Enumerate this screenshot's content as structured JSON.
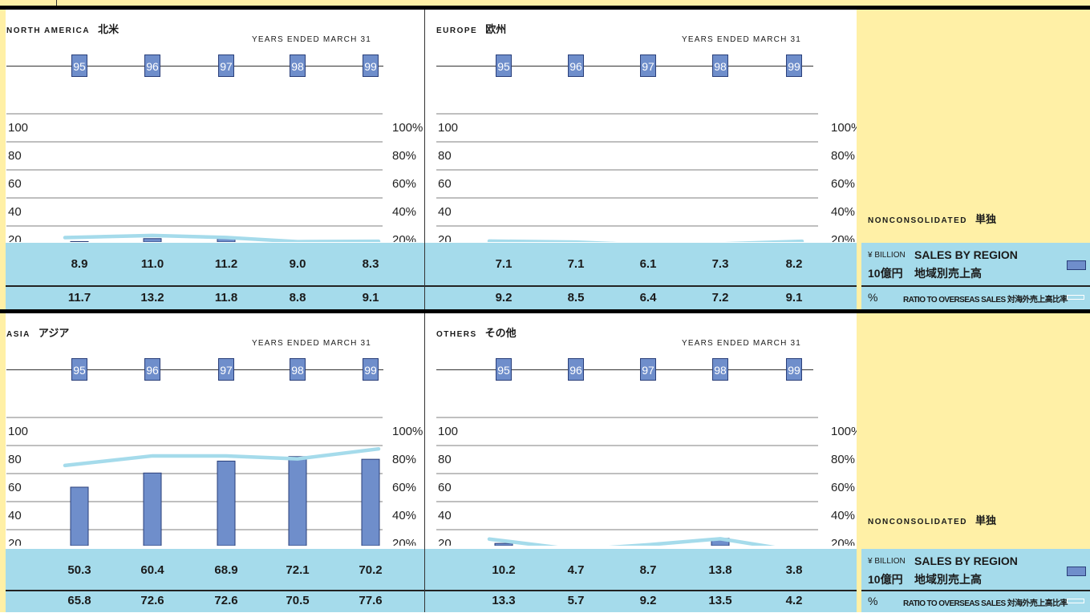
{
  "years_note": "YEARS ENDED MARCH 31",
  "years": [
    "95",
    "96",
    "97",
    "98",
    "99"
  ],
  "left_ticks": [
    "100",
    "80",
    "60",
    "40",
    "20"
  ],
  "right_ticks": [
    "100%",
    "80%",
    "60%",
    "40%",
    "20%"
  ],
  "legend": {
    "nonconsolidated": "NONCONSOLIDATED",
    "nonconsolidated_jp": "単独",
    "unit_en": "¥ BILLION",
    "sales_en": "SALES BY REGION",
    "unit_jp": "10億円",
    "sales_jp": "地域別売上高",
    "pct": "%",
    "ratio": "RATIO TO OVERSEAS SALES 対海外売上高比率"
  },
  "colors": {
    "bar": "#6f8ecb",
    "line": "#a5dbeb",
    "band": "#a5dbeb",
    "yellow": "#fff0a6"
  },
  "chart_data": [
    {
      "id": "na",
      "type": "bar",
      "region_en": "NORTH AMERICA",
      "region_jp": "北米",
      "categories": [
        "95",
        "96",
        "97",
        "98",
        "99"
      ],
      "series": [
        {
          "values": [
            8.9,
            11.0,
            11.2,
            9.0,
            8.3
          ]
        },
        {
          "values": [
            11.7,
            13.2,
            11.8,
            8.8,
            9.1
          ],
          "unit": "%"
        }
      ],
      "ylim": [
        0,
        100
      ],
      "ylim_right": [
        0,
        100
      ],
      "value_labels": [
        "8.9",
        "11.0",
        "11.2",
        "9.0",
        "8.3"
      ],
      "ratio_labels": [
        "11.7",
        "13.2",
        "11.8",
        "8.8",
        "9.1"
      ]
    },
    {
      "id": "eu",
      "type": "bar",
      "region_en": "EUROPE",
      "region_jp": "欧州",
      "categories": [
        "95",
        "96",
        "97",
        "98",
        "99"
      ],
      "series": [
        {
          "values": [
            7.1,
            7.1,
            6.1,
            7.3,
            8.2
          ]
        },
        {
          "values": [
            9.2,
            8.5,
            6.4,
            7.2,
            9.1
          ],
          "unit": "%"
        }
      ],
      "ylim": [
        0,
        100
      ],
      "ylim_right": [
        0,
        100
      ],
      "value_labels": [
        "7.1",
        "7.1",
        "6.1",
        "7.3",
        "8.2"
      ],
      "ratio_labels": [
        "9.2",
        "8.5",
        "6.4",
        "7.2",
        "9.1"
      ]
    },
    {
      "id": "asia",
      "type": "bar",
      "region_en": "ASIA",
      "region_jp": "アジア",
      "categories": [
        "95",
        "96",
        "97",
        "98",
        "99"
      ],
      "series": [
        {
          "values": [
            50.3,
            60.4,
            68.9,
            72.1,
            70.2
          ]
        },
        {
          "values": [
            65.8,
            72.6,
            72.6,
            70.5,
            77.6
          ],
          "unit": "%"
        }
      ],
      "ylim": [
        0,
        100
      ],
      "ylim_right": [
        0,
        100
      ],
      "value_labels": [
        "50.3",
        "60.4",
        "68.9",
        "72.1",
        "70.2"
      ],
      "ratio_labels": [
        "65.8",
        "72.6",
        "72.6",
        "70.5",
        "77.6"
      ]
    },
    {
      "id": "oth",
      "type": "bar",
      "region_en": "OTHERS",
      "region_jp": "その他",
      "categories": [
        "95",
        "96",
        "97",
        "98",
        "99"
      ],
      "series": [
        {
          "values": [
            10.2,
            4.7,
            8.7,
            13.8,
            3.8
          ]
        },
        {
          "values": [
            13.3,
            5.7,
            9.2,
            13.5,
            4.2
          ],
          "unit": "%"
        }
      ],
      "ylim": [
        0,
        100
      ],
      "ylim_right": [
        0,
        100
      ],
      "value_labels": [
        "10.2",
        "4.7",
        "8.7",
        "13.8",
        "3.8"
      ],
      "ratio_labels": [
        "13.3",
        "5.7",
        "9.2",
        "13.5",
        "4.2"
      ]
    }
  ]
}
